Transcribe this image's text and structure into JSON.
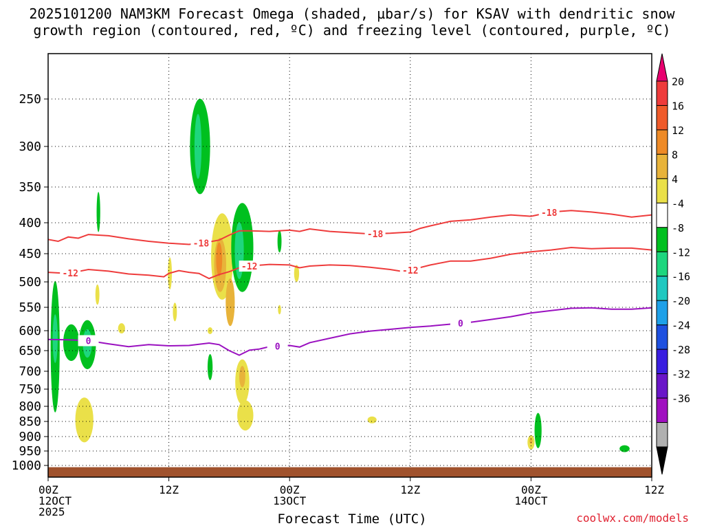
{
  "chart_data": {
    "type": "heatmap",
    "title_line1": "2025101200 NAM3KM Forecast Omega (shaded, µbar/s) for KSAV with dendritic snow",
    "title_line2": "growth region (contoured, red, ºC) and freezing level (contoured, purple, ºC)",
    "xlabel": "Forecast Time (UTC)",
    "credit": "coolwx.com/models",
    "x_ticks": [
      {
        "hours": 0,
        "line1": "00Z",
        "line2": "12OCT",
        "line3": "2025"
      },
      {
        "hours": 12,
        "line1": "12Z",
        "line2": "",
        "line3": ""
      },
      {
        "hours": 24,
        "line1": "00Z",
        "line2": "13OCT",
        "line3": ""
      },
      {
        "hours": 36,
        "line1": "12Z",
        "line2": "",
        "line3": ""
      },
      {
        "hours": 48,
        "line1": "00Z",
        "line2": "14OCT",
        "line3": ""
      },
      {
        "hours": 60,
        "line1": "12Z",
        "line2": "",
        "line3": ""
      }
    ],
    "xlim_hours": [
      0,
      60
    ],
    "y_ticks": [
      250,
      300,
      350,
      400,
      450,
      500,
      550,
      600,
      650,
      700,
      750,
      800,
      850,
      900,
      950,
      1000
    ],
    "y_axis": "pressure (hPa), reversed",
    "grid": true,
    "colorbar": {
      "labels": [
        "20",
        "16",
        "12",
        "8",
        "4",
        "-4",
        "-8",
        "-12",
        "-16",
        "-20",
        "-24",
        "-28",
        "-32",
        "-36"
      ],
      "colors": [
        "#e8006f",
        "#ee3b3b",
        "#ef5a2a",
        "#ee8a26",
        "#e8b33a",
        "#eae049",
        "#ffffff",
        "#00c01f",
        "#1ed67e",
        "#20c8c0",
        "#1ea0e8",
        "#1e50e0",
        "#3a1ee0",
        "#6a16c8",
        "#a010c0",
        "#b0b0b0",
        "#000000"
      ]
    },
    "contours": [
      {
        "kind": "dgz",
        "label": "-18",
        "color": "#ee3b3b",
        "points": [
          [
            0,
            427
          ],
          [
            1,
            430
          ],
          [
            2,
            423
          ],
          [
            3,
            425
          ],
          [
            4,
            419
          ],
          [
            6,
            421
          ],
          [
            8,
            426
          ],
          [
            10,
            430
          ],
          [
            12,
            433
          ],
          [
            14,
            435
          ],
          [
            16,
            431
          ],
          [
            17,
            428
          ],
          [
            18,
            420
          ],
          [
            19,
            413
          ],
          [
            20,
            413
          ],
          [
            22,
            414
          ],
          [
            24,
            412
          ],
          [
            25,
            414
          ],
          [
            26,
            410
          ],
          [
            28,
            414
          ],
          [
            30,
            416
          ],
          [
            32,
            418
          ],
          [
            34,
            417
          ],
          [
            36,
            415
          ],
          [
            37,
            409
          ],
          [
            38,
            405
          ],
          [
            40,
            398
          ],
          [
            42,
            396
          ],
          [
            44,
            392
          ],
          [
            46,
            389
          ],
          [
            48,
            391
          ],
          [
            50,
            385
          ],
          [
            52,
            383
          ],
          [
            54,
            385
          ],
          [
            56,
            388
          ],
          [
            58,
            392
          ],
          [
            60,
            389
          ]
        ],
        "labels_at_hours": [
          15.2,
          32.5,
          49.8
        ]
      },
      {
        "kind": "dgz",
        "label": "-12",
        "color": "#ee3b3b",
        "points": [
          [
            0,
            483
          ],
          [
            2,
            485
          ],
          [
            4,
            478
          ],
          [
            6,
            481
          ],
          [
            8,
            486
          ],
          [
            10,
            488
          ],
          [
            11.5,
            491
          ],
          [
            12,
            485
          ],
          [
            13,
            480
          ],
          [
            14,
            483
          ],
          [
            15,
            485
          ],
          [
            16,
            494
          ],
          [
            17,
            487
          ],
          [
            18,
            482
          ],
          [
            19,
            475
          ],
          [
            20,
            472
          ],
          [
            22,
            469
          ],
          [
            24,
            470
          ],
          [
            25,
            475
          ],
          [
            26,
            472
          ],
          [
            28,
            470
          ],
          [
            30,
            471
          ],
          [
            32,
            474
          ],
          [
            34,
            478
          ],
          [
            35,
            481
          ],
          [
            36,
            479
          ],
          [
            38,
            470
          ],
          [
            40,
            463
          ],
          [
            42,
            463
          ],
          [
            44,
            458
          ],
          [
            46,
            451
          ],
          [
            48,
            447
          ],
          [
            50,
            444
          ],
          [
            52,
            440
          ],
          [
            54,
            442
          ],
          [
            56,
            441
          ],
          [
            58,
            441
          ],
          [
            60,
            444
          ]
        ],
        "labels_at_hours": [
          2.2,
          20.0,
          36.0
        ]
      },
      {
        "kind": "freezing",
        "label": "0",
        "color": "#9a10c0",
        "points": [
          [
            0,
            622
          ],
          [
            2,
            623
          ],
          [
            4,
            625
          ],
          [
            6,
            633
          ],
          [
            8,
            640
          ],
          [
            10,
            635
          ],
          [
            12,
            638
          ],
          [
            14,
            637
          ],
          [
            16,
            631
          ],
          [
            17,
            635
          ],
          [
            18,
            650
          ],
          [
            19,
            661
          ],
          [
            20,
            649
          ],
          [
            21,
            646
          ],
          [
            22,
            640
          ],
          [
            24,
            637
          ],
          [
            25,
            641
          ],
          [
            26,
            630
          ],
          [
            28,
            619
          ],
          [
            30,
            608
          ],
          [
            32,
            601
          ],
          [
            34,
            597
          ],
          [
            36,
            593
          ],
          [
            38,
            590
          ],
          [
            40,
            586
          ],
          [
            42,
            582
          ],
          [
            44,
            576
          ],
          [
            46,
            570
          ],
          [
            48,
            562
          ],
          [
            50,
            557
          ],
          [
            52,
            552
          ],
          [
            54,
            551
          ],
          [
            56,
            554
          ],
          [
            58,
            554
          ],
          [
            60,
            551
          ]
        ],
        "labels_at_hours": [
          4.0,
          22.8,
          41.0
        ]
      }
    ],
    "shaded_blobs": [
      {
        "hours": 0.7,
        "p": 640,
        "rx": 0.45,
        "rp": 180,
        "level": -8
      },
      {
        "hours": 0.7,
        "p": 620,
        "rx": 0.25,
        "rp": 60,
        "level": -12
      },
      {
        "hours": 2.3,
        "p": 630,
        "rx": 0.8,
        "rp": 45,
        "level": -8
      },
      {
        "hours": 3.9,
        "p": 635,
        "rx": 0.85,
        "rp": 60,
        "level": -8
      },
      {
        "hours": 3.9,
        "p": 632,
        "rx": 0.45,
        "rp": 35,
        "level": -12
      },
      {
        "hours": 3.6,
        "p": 845,
        "rx": 0.9,
        "rp": 75,
        "level": 4
      },
      {
        "hours": 5.0,
        "p": 385,
        "rx": 0.18,
        "rp": 30,
        "level": -8
      },
      {
        "hours": 7.3,
        "p": 595,
        "rx": 0.35,
        "rp": 12,
        "level": 4
      },
      {
        "hours": 4.9,
        "p": 525,
        "rx": 0.2,
        "rp": 20,
        "level": 4
      },
      {
        "hours": 12.1,
        "p": 485,
        "rx": 0.2,
        "rp": 30,
        "level": 4
      },
      {
        "hours": 12.6,
        "p": 560,
        "rx": 0.2,
        "rp": 20,
        "level": 4
      },
      {
        "hours": 15.1,
        "p": 300,
        "rx": 1.0,
        "rp": 60,
        "level": -8
      },
      {
        "hours": 14.9,
        "p": 300,
        "rx": 0.35,
        "rp": 40,
        "level": -12
      },
      {
        "hours": 16.1,
        "p": 600,
        "rx": 0.25,
        "rp": 0,
        "level": 4
      },
      {
        "hours": 17.3,
        "p": 455,
        "rx": 1.1,
        "rp": 80,
        "level": 4
      },
      {
        "hours": 17.1,
        "p": 470,
        "rx": 0.6,
        "rp": 50,
        "level": 8
      },
      {
        "hours": 17.0,
        "p": 460,
        "rx": 0.3,
        "rp": 30,
        "level": 12
      },
      {
        "hours": 18.1,
        "p": 540,
        "rx": 0.45,
        "rp": 50,
        "level": 8
      },
      {
        "hours": 16.1,
        "p": 690,
        "rx": 0.25,
        "rp": 35,
        "level": -8
      },
      {
        "hours": 19.3,
        "p": 440,
        "rx": 1.1,
        "rp": 80,
        "level": -8
      },
      {
        "hours": 19.0,
        "p": 445,
        "rx": 0.45,
        "rp": 50,
        "level": -12
      },
      {
        "hours": 19.3,
        "p": 730,
        "rx": 0.7,
        "rp": 65,
        "level": 4
      },
      {
        "hours": 19.3,
        "p": 715,
        "rx": 0.3,
        "rp": 30,
        "level": 8
      },
      {
        "hours": 19.6,
        "p": 830,
        "rx": 0.8,
        "rp": 50,
        "level": 4
      },
      {
        "hours": 23.0,
        "p": 430,
        "rx": 0.2,
        "rp": 18,
        "level": -8
      },
      {
        "hours": 24.7,
        "p": 485,
        "rx": 0.25,
        "rp": 15,
        "level": 4
      },
      {
        "hours": 23.0,
        "p": 555,
        "rx": 0.15,
        "rp": 10,
        "level": 4
      },
      {
        "hours": 32.2,
        "p": 845,
        "rx": 0.45,
        "rp": 8,
        "level": 4
      },
      {
        "hours": 48.0,
        "p": 920,
        "rx": 0.35,
        "rp": 25,
        "level": 4
      },
      {
        "hours": 48.0,
        "p": 915,
        "rx": 0.15,
        "rp": 12,
        "level": 8
      },
      {
        "hours": 48.7,
        "p": 880,
        "rx": 0.35,
        "rp": 60,
        "level": -8
      },
      {
        "hours": 57.3,
        "p": 942,
        "rx": 0.5,
        "rp": 5,
        "level": -8
      }
    ]
  }
}
